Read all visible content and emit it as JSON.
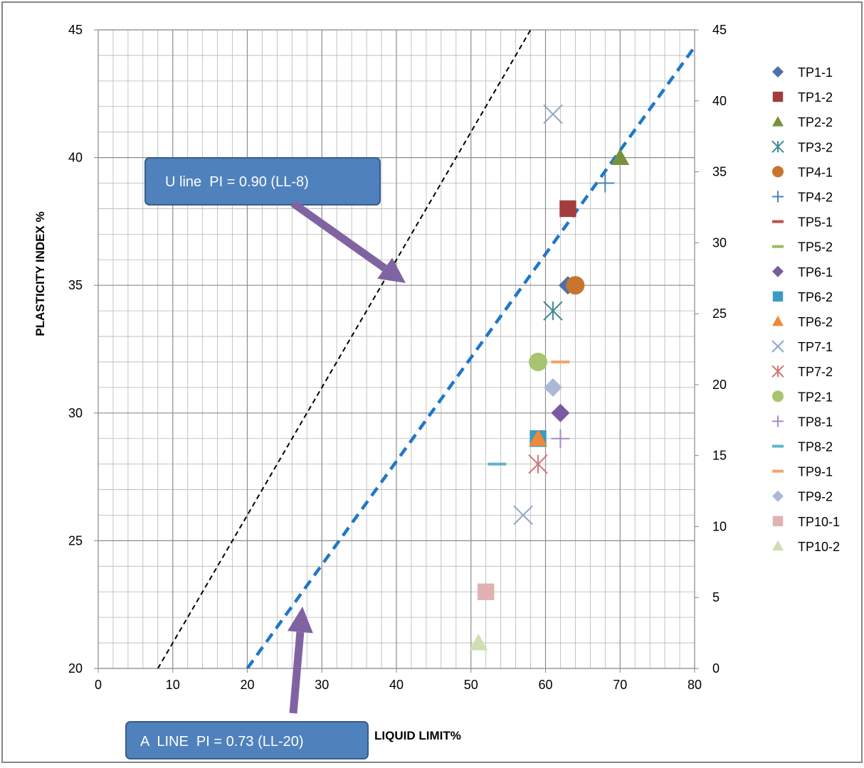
{
  "chart_data": {
    "type": "scatter",
    "title": "",
    "xlabel": "LIQUID LIMIT%",
    "ylabel": "PLASTICITY INDEX %",
    "xlim": [
      0,
      80
    ],
    "ylim_left": [
      20,
      45
    ],
    "ylim_right": [
      0,
      45
    ],
    "x_ticks": [
      0,
      10,
      20,
      30,
      40,
      50,
      60,
      70,
      80
    ],
    "y_ticks_left": [
      20,
      25,
      30,
      35,
      40,
      45
    ],
    "y_ticks_right": [
      0,
      5,
      10,
      15,
      20,
      25,
      30,
      35,
      40,
      45
    ],
    "grid": true,
    "legend_position": "right",
    "lines": [
      {
        "label": "U line  PI = 0.90 (LL-8)",
        "x": [
          8,
          64
        ],
        "y_right": [
          0,
          50.4
        ],
        "style": "dashed",
        "color": "#000000"
      },
      {
        "label": "A  LINE  PI = 0.73 (LL-20)",
        "x": [
          20,
          80
        ],
        "y_right": [
          0,
          43.8
        ],
        "style": "dashed",
        "color": "#1f77c8"
      }
    ],
    "series": [
      {
        "name": "TP1-1",
        "marker": "diamond",
        "color": "#4f6fa8",
        "x": [
          63
        ],
        "y": [
          35
        ]
      },
      {
        "name": "TP1-2",
        "marker": "square",
        "color": "#a33c3c",
        "x": [
          63
        ],
        "y": [
          38
        ]
      },
      {
        "name": "TP2-2",
        "marker": "triangle",
        "color": "#76923c",
        "x": [
          70
        ],
        "y": [
          40
        ]
      },
      {
        "name": "TP3-2",
        "marker": "asterisk",
        "color": "#3e8b94",
        "x": [
          61
        ],
        "y": [
          34
        ]
      },
      {
        "name": "TP4-1",
        "marker": "circle",
        "color": "#c8742c",
        "x": [
          64
        ],
        "y": [
          35
        ]
      },
      {
        "name": "TP4-2",
        "marker": "plus",
        "color": "#4f7fbf",
        "x": [
          68
        ],
        "y": [
          39
        ]
      },
      {
        "name": "TP5-1",
        "marker": "dash",
        "color": "#c0504d",
        "x": [],
        "y": []
      },
      {
        "name": "TP5-2",
        "marker": "dash",
        "color": "#9bbb59",
        "x": [],
        "y": []
      },
      {
        "name": "TP6-1",
        "marker": "diamond",
        "color": "#7a5aa0",
        "x": [
          62
        ],
        "y": [
          30
        ]
      },
      {
        "name": "TP6-2",
        "marker": "square",
        "color": "#3a9cc1",
        "x": [
          59
        ],
        "y": [
          29
        ]
      },
      {
        "name": "TP6-2",
        "marker": "triangle",
        "color": "#f0883a",
        "x": [
          59
        ],
        "y": [
          29
        ]
      },
      {
        "name": "TP7-1",
        "marker": "x",
        "color": "#8ea2c8",
        "x": [
          57,
          61
        ],
        "y": [
          26,
          41.7
        ]
      },
      {
        "name": "TP7-2",
        "marker": "asterisk",
        "color": "#d17574",
        "x": [
          59
        ],
        "y": [
          28
        ]
      },
      {
        "name": "TP2-1",
        "marker": "circle",
        "color": "#a9c46f",
        "x": [
          59
        ],
        "y": [
          32
        ]
      },
      {
        "name": "TP8-1",
        "marker": "plus",
        "color": "#a58bc2",
        "x": [
          62
        ],
        "y": [
          29
        ]
      },
      {
        "name": "TP8-2",
        "marker": "dash",
        "color": "#5fb4ca",
        "x": [
          53.5
        ],
        "y": [
          28
        ]
      },
      {
        "name": "TP9-1",
        "marker": "dash",
        "color": "#f4a46a",
        "x": [
          62
        ],
        "y": [
          32
        ]
      },
      {
        "name": "TP9-2",
        "marker": "diamond",
        "color": "#aab9d8",
        "x": [
          61
        ],
        "y": [
          31
        ]
      },
      {
        "name": "TP10-1",
        "marker": "square",
        "color": "#e0b2b1",
        "x": [
          52
        ],
        "y": [
          23
        ]
      },
      {
        "name": "TP10-2",
        "marker": "triangle",
        "color": "#cfdfb1",
        "x": [
          51
        ],
        "y": [
          21
        ]
      }
    ]
  },
  "callouts": {
    "u_line": "U line  PI = 0.90 (LL-8)",
    "a_line": "A  LINE  PI = 0.73 (LL-20)"
  },
  "colors": {
    "callout_fill": "#4f81bd",
    "callout_border": "#385d8a",
    "arrow": "#8064a2",
    "grid": "#b5b5b5",
    "frame": "#868686"
  }
}
